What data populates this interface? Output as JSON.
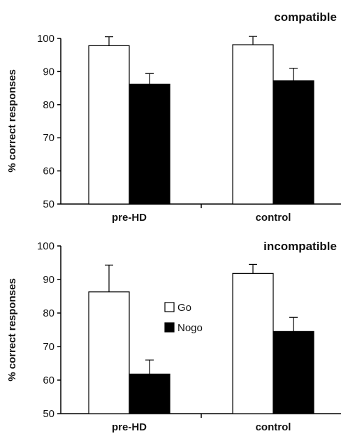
{
  "chart_data": [
    {
      "type": "bar",
      "title": "compatible",
      "ylabel": "% correct responses",
      "xlabel": "",
      "ylim": [
        50,
        100
      ],
      "yticks": [
        50,
        60,
        70,
        80,
        90,
        100
      ],
      "categories": [
        "pre-HD",
        "control"
      ],
      "series": [
        {
          "name": "Go",
          "values": [
            97.8,
            98.1
          ],
          "errors": [
            2.7,
            2.5
          ],
          "color": "#ffffff"
        },
        {
          "name": "Nogo",
          "values": [
            86.2,
            87.2
          ],
          "errors": [
            3.2,
            3.8
          ],
          "color": "#000000"
        }
      ],
      "grid": false,
      "legend": "none"
    },
    {
      "type": "bar",
      "title": "incompatible",
      "ylabel": "% correct responses",
      "xlabel": "",
      "ylim": [
        50,
        100
      ],
      "yticks": [
        50,
        60,
        70,
        80,
        90,
        100
      ],
      "categories": [
        "pre-HD",
        "control"
      ],
      "series": [
        {
          "name": "Go",
          "values": [
            86.3,
            91.8
          ],
          "errors": [
            8.0,
            2.7
          ],
          "color": "#ffffff"
        },
        {
          "name": "Nogo",
          "values": [
            61.8,
            74.5
          ],
          "errors": [
            4.2,
            4.2
          ],
          "color": "#000000"
        }
      ],
      "grid": false,
      "legend": "center"
    }
  ]
}
